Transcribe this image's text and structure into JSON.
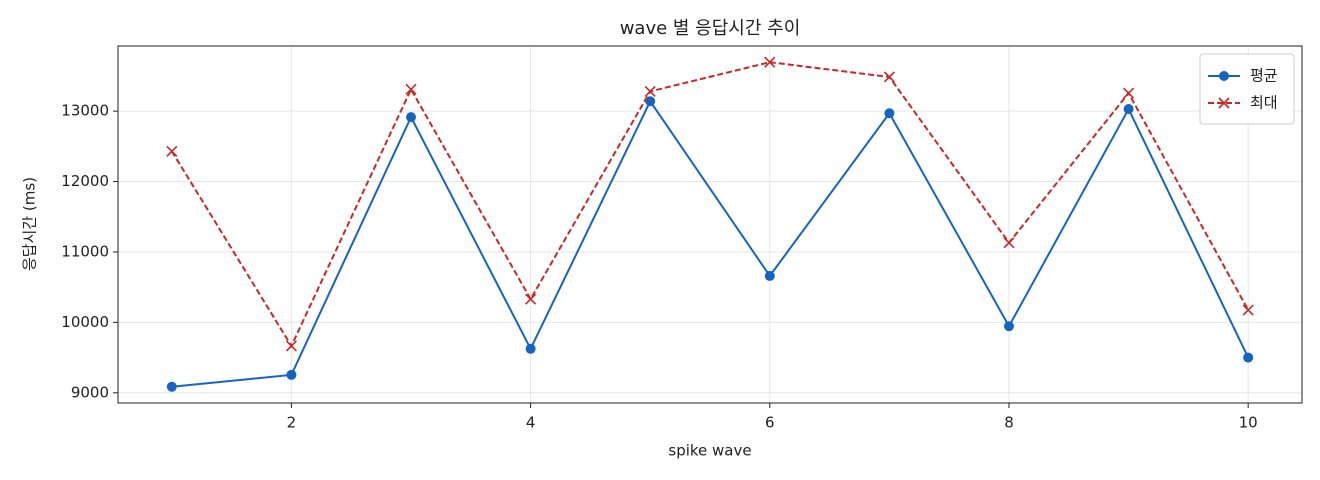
{
  "chart_data": {
    "type": "line",
    "title": "wave 별 응답시간 추이",
    "x_label": "spike wave",
    "y_label": "응답시간 (ms)",
    "x": [
      1,
      2,
      3,
      4,
      5,
      6,
      7,
      8,
      9,
      10
    ],
    "series": [
      {
        "name": "평균",
        "color": "#1565c0",
        "marker": "o",
        "dash": false,
        "values": [
          9085,
          9255,
          12915,
          9625,
          13140,
          10660,
          12970,
          9945,
          13030,
          9500
        ]
      },
      {
        "name": "최대",
        "color": "#c62828",
        "marker": "x",
        "dash": true,
        "values": [
          12430,
          9665,
          13310,
          10330,
          13280,
          13695,
          13485,
          11130,
          13255,
          10175
        ]
      }
    ],
    "xlim": [
      0.55,
      10.45
    ],
    "xticks": [
      2,
      4,
      6,
      8,
      10
    ],
    "ylim": [
      8855,
      13925
    ],
    "yticks": [
      9000,
      10000,
      11000,
      12000,
      13000
    ],
    "grid": true,
    "legend": "upper right"
  }
}
